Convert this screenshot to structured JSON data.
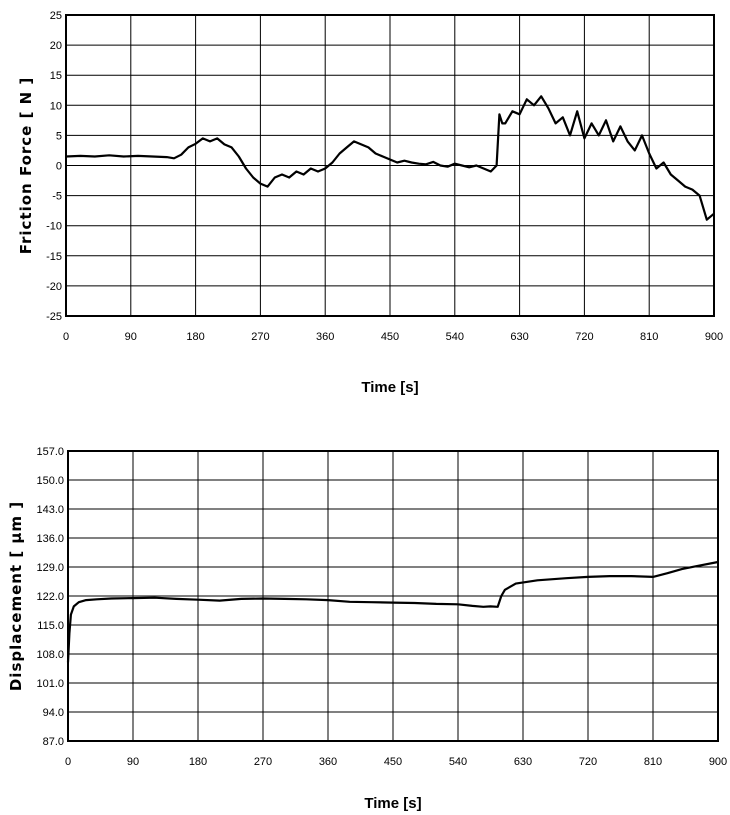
{
  "chart_data": [
    {
      "type": "line",
      "title": "",
      "xlabel": "Time [s]",
      "ylabel": "Friction Force [ N ]",
      "xlim": [
        0,
        900
      ],
      "ylim": [
        -25,
        25
      ],
      "grid": true,
      "x_ticks": [
        "0",
        "90",
        "180",
        "270",
        "360",
        "450",
        "540",
        "630",
        "720",
        "810",
        "900"
      ],
      "y_ticks": [
        "25",
        "20",
        "15",
        "10",
        "5",
        "0",
        "-5",
        "-10",
        "-15",
        "-20",
        "-25"
      ],
      "line_color": "#000000",
      "series": [
        {
          "x": [
            0,
            20,
            40,
            60,
            80,
            100,
            120,
            140,
            150,
            160,
            170,
            180,
            190,
            200,
            210,
            220,
            230,
            240,
            250,
            260,
            270,
            280,
            290,
            300,
            310,
            320,
            330,
            340,
            350,
            360,
            370,
            380,
            390,
            400,
            410,
            420,
            430,
            440,
            450,
            460,
            470,
            480,
            490,
            500,
            510,
            520,
            530,
            540,
            550,
            560,
            570,
            580,
            590,
            598,
            602,
            606,
            610,
            620,
            630,
            640,
            650,
            660,
            670,
            680,
            690,
            700,
            710,
            720,
            730,
            740,
            750,
            760,
            770,
            780,
            790,
            800,
            810,
            820,
            830,
            840,
            850,
            860,
            870,
            880,
            890,
            900
          ],
          "y": [
            1.5,
            1.6,
            1.5,
            1.7,
            1.5,
            1.6,
            1.5,
            1.4,
            1.2,
            1.8,
            3.0,
            3.6,
            4.5,
            4.0,
            4.5,
            3.5,
            3.0,
            1.5,
            -0.5,
            -2.0,
            -3.0,
            -3.5,
            -2.0,
            -1.5,
            -2.0,
            -1.0,
            -1.5,
            -0.5,
            -1.0,
            -0.5,
            0.5,
            2.0,
            3.0,
            4.0,
            3.5,
            3.0,
            2.0,
            1.5,
            1.0,
            0.5,
            0.8,
            0.5,
            0.3,
            0.2,
            0.6,
            0.0,
            -0.2,
            0.3,
            0.0,
            -0.3,
            0.0,
            -0.5,
            -1.0,
            0.0,
            8.5,
            7.0,
            7.0,
            9.0,
            8.5,
            11.0,
            10.0,
            11.5,
            9.5,
            7.0,
            8.0,
            5.0,
            9.0,
            4.5,
            7.0,
            5.0,
            7.5,
            4.0,
            6.5,
            4.0,
            2.5,
            5.0,
            2.0,
            -0.5,
            0.5,
            -1.5,
            -2.5,
            -3.5,
            -4.0,
            -5.0,
            -9.0,
            -8.0
          ]
        }
      ]
    },
    {
      "type": "line",
      "title": "",
      "xlabel": "Time [s]",
      "ylabel": "Displacement [ µm ]",
      "xlim": [
        0,
        900
      ],
      "ylim": [
        87,
        157
      ],
      "grid": true,
      "x_ticks": [
        "0",
        "90",
        "180",
        "270",
        "360",
        "450",
        "540",
        "630",
        "720",
        "810",
        "900"
      ],
      "y_ticks": [
        "157.0",
        "150.0",
        "143.0",
        "136.0",
        "129.0",
        "122.0",
        "115.0",
        "108.0",
        "101.0",
        "94.0",
        "87.0"
      ],
      "line_color": "#000000",
      "series": [
        {
          "x": [
            0,
            2,
            4,
            8,
            15,
            25,
            40,
            60,
            90,
            120,
            150,
            180,
            210,
            240,
            270,
            300,
            330,
            360,
            390,
            420,
            450,
            480,
            510,
            540,
            560,
            575,
            585,
            595,
            600,
            605,
            620,
            650,
            690,
            720,
            750,
            780,
            810,
            830,
            850,
            870,
            900
          ],
          "y": [
            106.0,
            113.0,
            117.5,
            119.5,
            120.5,
            121.0,
            121.2,
            121.4,
            121.5,
            121.6,
            121.3,
            121.1,
            120.9,
            121.3,
            121.4,
            121.3,
            121.2,
            121.0,
            120.6,
            120.5,
            120.4,
            120.3,
            120.1,
            120.0,
            119.6,
            119.4,
            119.5,
            119.4,
            122.0,
            123.5,
            125.0,
            125.8,
            126.3,
            126.6,
            126.8,
            126.8,
            126.6,
            127.5,
            128.5,
            129.2,
            130.2
          ]
        }
      ]
    }
  ]
}
